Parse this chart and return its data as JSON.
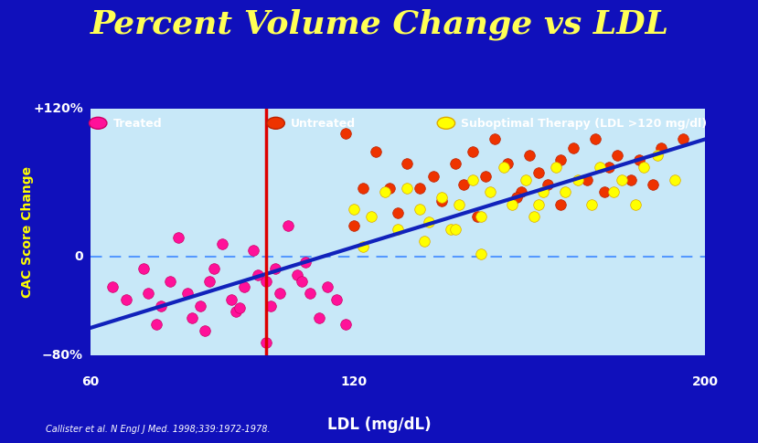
{
  "title": "Percent Volume Change vs LDL",
  "title_color": "#FFFF55",
  "title_fontsize": 26,
  "background_outer": "#1010BB",
  "background_plot": "#C8E8F8",
  "xlabel": "LDL (mg/dL)",
  "ylabel": "CAC Score Change",
  "xlim": [
    60,
    200
  ],
  "ylim": [
    -80,
    120
  ],
  "yticks": [
    -80,
    0,
    120
  ],
  "yticklabels": [
    "−80%",
    "0",
    "+120%"
  ],
  "xticks": [
    60,
    120,
    200
  ],
  "xticklabels": [
    "60",
    "120",
    "200"
  ],
  "vline_x": 100,
  "vline_color": "#DD0000",
  "hline_y": 0,
  "hline_color": "#5599FF",
  "trend_line": {
    "x0": 60,
    "x1": 200,
    "y0": -58,
    "y1": 95
  },
  "trend_color": "#1122BB",
  "trend_lw": 3,
  "legend": [
    {
      "label": "Treated",
      "color": "#FF1199",
      "edge": "#CC0066"
    },
    {
      "label": "Untreated",
      "color": "#EE3300",
      "edge": "#BB2200"
    },
    {
      "label": "Suboptimal Therapy (LDL >120 mg/dl)",
      "color": "#FFFF00",
      "edge": "#DDAA00"
    }
  ],
  "citation": "Callister et al. N Engl J Med. 1998;339:1972-1978.",
  "stripe1_color": "#111100",
  "stripe2_color": "#CCAA00",
  "stripe3_color": "#880022",
  "treated_points": [
    [
      65,
      -25
    ],
    [
      68,
      -35
    ],
    [
      72,
      -10
    ],
    [
      73,
      -30
    ],
    [
      76,
      -40
    ],
    [
      78,
      -20
    ],
    [
      80,
      15
    ],
    [
      82,
      -30
    ],
    [
      83,
      -50
    ],
    [
      85,
      -40
    ],
    [
      87,
      -20
    ],
    [
      88,
      -10
    ],
    [
      90,
      10
    ],
    [
      92,
      -35
    ],
    [
      93,
      -45
    ],
    [
      95,
      -25
    ],
    [
      97,
      5
    ],
    [
      98,
      -15
    ],
    [
      100,
      -70
    ],
    [
      100,
      -20
    ],
    [
      101,
      -40
    ],
    [
      103,
      -30
    ],
    [
      105,
      25
    ],
    [
      107,
      -15
    ],
    [
      108,
      -20
    ],
    [
      110,
      -30
    ],
    [
      112,
      -50
    ],
    [
      114,
      -25
    ],
    [
      116,
      -35
    ],
    [
      118,
      -55
    ],
    [
      75,
      -55
    ],
    [
      86,
      -60
    ],
    [
      94,
      -42
    ],
    [
      102,
      -10
    ],
    [
      109,
      -5
    ]
  ],
  "untreated_points": [
    [
      118,
      100
    ],
    [
      122,
      55
    ],
    [
      125,
      85
    ],
    [
      128,
      55
    ],
    [
      130,
      35
    ],
    [
      132,
      75
    ],
    [
      135,
      55
    ],
    [
      138,
      65
    ],
    [
      140,
      45
    ],
    [
      143,
      75
    ],
    [
      145,
      58
    ],
    [
      147,
      85
    ],
    [
      150,
      65
    ],
    [
      152,
      95
    ],
    [
      155,
      75
    ],
    [
      158,
      52
    ],
    [
      160,
      82
    ],
    [
      162,
      68
    ],
    [
      164,
      58
    ],
    [
      167,
      78
    ],
    [
      170,
      88
    ],
    [
      173,
      62
    ],
    [
      175,
      95
    ],
    [
      178,
      72
    ],
    [
      180,
      82
    ],
    [
      183,
      62
    ],
    [
      185,
      78
    ],
    [
      188,
      58
    ],
    [
      190,
      88
    ],
    [
      195,
      95
    ],
    [
      148,
      32
    ],
    [
      157,
      48
    ],
    [
      167,
      42
    ],
    [
      177,
      52
    ],
    [
      120,
      25
    ]
  ],
  "suboptimal_points": [
    [
      120,
      38
    ],
    [
      122,
      8
    ],
    [
      124,
      32
    ],
    [
      127,
      52
    ],
    [
      130,
      22
    ],
    [
      132,
      55
    ],
    [
      135,
      38
    ],
    [
      137,
      28
    ],
    [
      140,
      48
    ],
    [
      142,
      22
    ],
    [
      144,
      42
    ],
    [
      147,
      62
    ],
    [
      149,
      32
    ],
    [
      151,
      52
    ],
    [
      154,
      72
    ],
    [
      156,
      42
    ],
    [
      159,
      62
    ],
    [
      161,
      32
    ],
    [
      163,
      52
    ],
    [
      166,
      72
    ],
    [
      168,
      52
    ],
    [
      171,
      62
    ],
    [
      174,
      42
    ],
    [
      176,
      72
    ],
    [
      179,
      52
    ],
    [
      181,
      62
    ],
    [
      184,
      42
    ],
    [
      186,
      72
    ],
    [
      189,
      82
    ],
    [
      193,
      62
    ],
    [
      136,
      12
    ],
    [
      143,
      22
    ],
    [
      149,
      2
    ],
    [
      162,
      42
    ]
  ]
}
